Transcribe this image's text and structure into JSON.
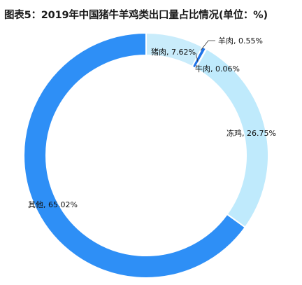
{
  "chart_data": {
    "type": "pie",
    "title": "图表5：2019年中国猪牛羊鸡类出口量占比情况(单位：%)",
    "donut": true,
    "legend": "none",
    "slices": [
      {
        "name": "猪肉",
        "value": 7.62,
        "label": "猪肉, 7.62%",
        "color": "#c9ecfb"
      },
      {
        "name": "羊肉",
        "value": 0.55,
        "label": "羊肉, 0.55%",
        "color": "#1e74e8"
      },
      {
        "name": "牛肉",
        "value": 0.06,
        "label": "牛肉, 0.06%",
        "color": "#1e74e8"
      },
      {
        "name": "冻鸡",
        "value": 26.75,
        "label": "冻鸡, 26.75%",
        "color": "#bfeafc"
      },
      {
        "name": "其他",
        "value": 65.02,
        "label": "其他, 65.02%",
        "color": "#2e8ff6"
      }
    ]
  }
}
